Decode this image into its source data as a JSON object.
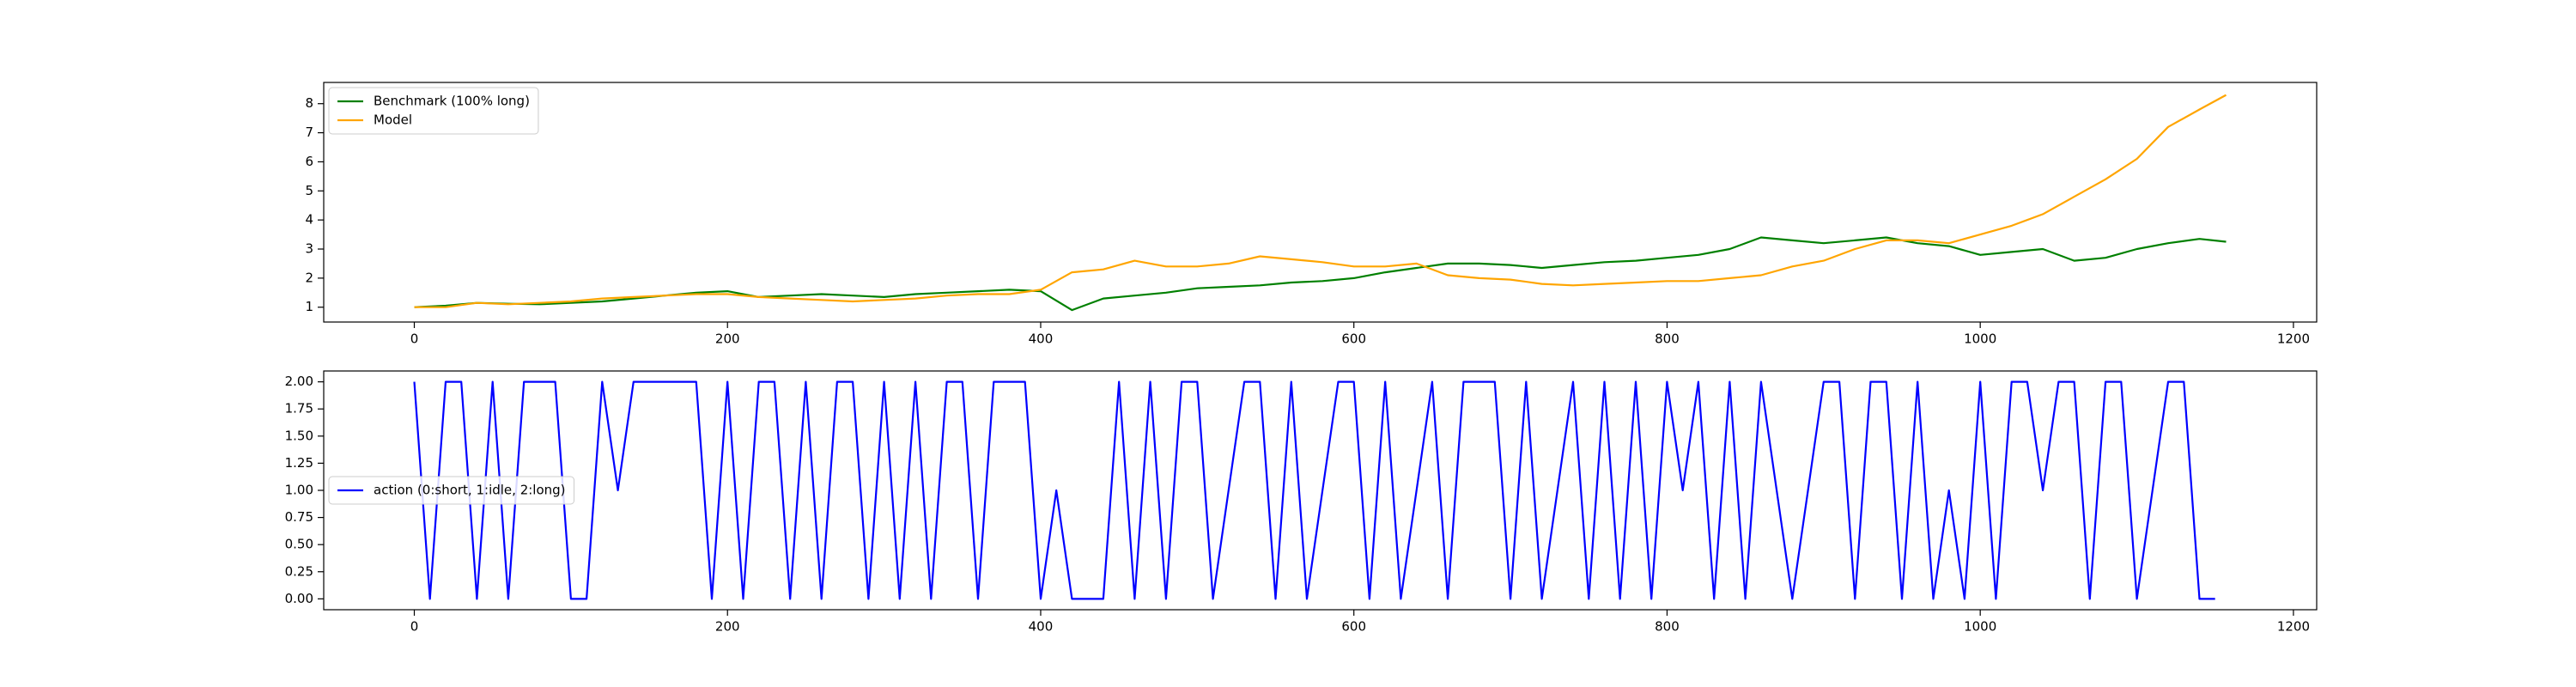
{
  "chart_data": [
    {
      "type": "line",
      "x": [
        0,
        20,
        40,
        60,
        80,
        100,
        120,
        140,
        160,
        180,
        200,
        220,
        240,
        260,
        280,
        300,
        320,
        340,
        360,
        380,
        400,
        420,
        440,
        460,
        480,
        500,
        520,
        540,
        560,
        580,
        600,
        620,
        640,
        660,
        680,
        700,
        720,
        740,
        760,
        780,
        800,
        820,
        840,
        860,
        880,
        900,
        920,
        940,
        960,
        980,
        1000,
        1020,
        1040,
        1060,
        1080,
        1100,
        1120,
        1140,
        1157
      ],
      "series": [
        {
          "name": "Benchmark (100% long)",
          "color": "#008000",
          "values": [
            1.0,
            1.05,
            1.15,
            1.12,
            1.1,
            1.15,
            1.2,
            1.3,
            1.4,
            1.5,
            1.55,
            1.35,
            1.4,
            1.45,
            1.4,
            1.35,
            1.45,
            1.5,
            1.55,
            1.6,
            1.55,
            0.9,
            1.3,
            1.4,
            1.5,
            1.65,
            1.7,
            1.75,
            1.85,
            1.9,
            2.0,
            2.2,
            2.35,
            2.5,
            2.5,
            2.45,
            2.35,
            2.45,
            2.55,
            2.6,
            2.7,
            2.8,
            3.0,
            3.4,
            3.3,
            3.2,
            3.3,
            3.4,
            3.2,
            3.1,
            2.8,
            2.9,
            3.0,
            2.6,
            2.7,
            3.0,
            3.2,
            3.35,
            3.25
          ]
        },
        {
          "name": "Model",
          "color": "#ffa500",
          "values": [
            1.0,
            1.0,
            1.15,
            1.1,
            1.15,
            1.2,
            1.3,
            1.35,
            1.4,
            1.45,
            1.45,
            1.35,
            1.3,
            1.25,
            1.2,
            1.25,
            1.3,
            1.4,
            1.45,
            1.45,
            1.6,
            2.2,
            2.3,
            2.6,
            2.4,
            2.4,
            2.5,
            2.75,
            2.65,
            2.55,
            2.4,
            2.4,
            2.5,
            2.1,
            2.0,
            1.95,
            1.8,
            1.75,
            1.8,
            1.85,
            1.9,
            1.9,
            2.0,
            2.1,
            2.4,
            2.6,
            3.0,
            3.3,
            3.3,
            3.2,
            3.5,
            3.8,
            4.2,
            4.8,
            5.4,
            6.1,
            7.2,
            7.8,
            8.3
          ]
        }
      ],
      "xlim": [
        -57.85,
        1214.85
      ],
      "ylim": [
        0.49,
        8.73
      ],
      "xticks": [
        0,
        200,
        400,
        600,
        800,
        1000,
        1200
      ],
      "yticks": [
        1,
        2,
        3,
        4,
        5,
        6,
        7,
        8
      ],
      "legend": "upper left"
    },
    {
      "type": "line",
      "x": [
        0,
        10,
        20,
        30,
        40,
        50,
        60,
        70,
        80,
        90,
        100,
        110,
        120,
        130,
        140,
        150,
        160,
        170,
        180,
        190,
        200,
        210,
        220,
        230,
        240,
        250,
        260,
        270,
        280,
        290,
        300,
        310,
        320,
        330,
        340,
        350,
        360,
        370,
        380,
        390,
        400,
        410,
        420,
        430,
        440,
        450,
        460,
        470,
        480,
        490,
        500,
        510,
        520,
        530,
        540,
        550,
        560,
        570,
        580,
        590,
        600,
        610,
        620,
        630,
        640,
        650,
        660,
        670,
        680,
        690,
        700,
        710,
        720,
        730,
        740,
        750,
        760,
        770,
        780,
        790,
        800,
        810,
        820,
        830,
        840,
        850,
        860,
        870,
        880,
        890,
        900,
        910,
        920,
        930,
        940,
        950,
        960,
        970,
        980,
        990,
        1000,
        1010,
        1020,
        1030,
        1040,
        1050,
        1060,
        1070,
        1080,
        1090,
        1100,
        1110,
        1120,
        1130,
        1140,
        1150
      ],
      "series": [
        {
          "name": "action (0:short, 1:idle, 2:long)",
          "color": "#0000ff",
          "values": [
            2,
            0,
            2,
            2,
            0,
            2,
            0,
            2,
            2,
            2,
            0,
            0,
            2,
            1,
            2,
            2,
            2,
            2,
            2,
            0,
            2,
            0,
            2,
            2,
            0,
            2,
            0,
            2,
            2,
            0,
            2,
            0,
            2,
            0,
            2,
            2,
            0,
            2,
            2,
            2,
            0,
            1,
            0,
            0,
            0,
            2,
            0,
            2,
            0,
            2,
            2,
            0,
            1,
            2,
            2,
            0,
            2,
            0,
            1,
            2,
            2,
            0,
            2,
            0,
            1,
            2,
            0,
            2,
            2,
            2,
            0,
            2,
            0,
            1,
            2,
            0,
            2,
            0,
            2,
            0,
            2,
            1,
            2,
            0,
            2,
            0,
            2,
            1,
            0,
            1,
            2,
            2,
            0,
            2,
            2,
            0,
            2,
            0,
            1,
            0,
            2,
            0,
            2,
            2,
            1,
            2,
            2,
            0,
            2,
            2,
            0,
            1,
            2,
            2,
            0,
            0
          ]
        }
      ],
      "xlim": [
        -57.85,
        1214.85
      ],
      "ylim": [
        -0.1,
        2.1
      ],
      "xticks": [
        0,
        200,
        400,
        600,
        800,
        1000,
        1200
      ],
      "yticks": [
        {
          "value": 0,
          "label": "0.00"
        },
        {
          "value": 0.25,
          "label": "0.25"
        },
        {
          "value": 0.5,
          "label": "0.50"
        },
        {
          "value": 0.75,
          "label": "0.75"
        },
        {
          "value": 1,
          "label": "1.00"
        },
        {
          "value": 1.25,
          "label": "1.25"
        },
        {
          "value": 1.5,
          "label": "1.50"
        },
        {
          "value": 1.75,
          "label": "1.75"
        },
        {
          "value": 2,
          "label": "2.00"
        }
      ],
      "legend": "center left"
    }
  ]
}
